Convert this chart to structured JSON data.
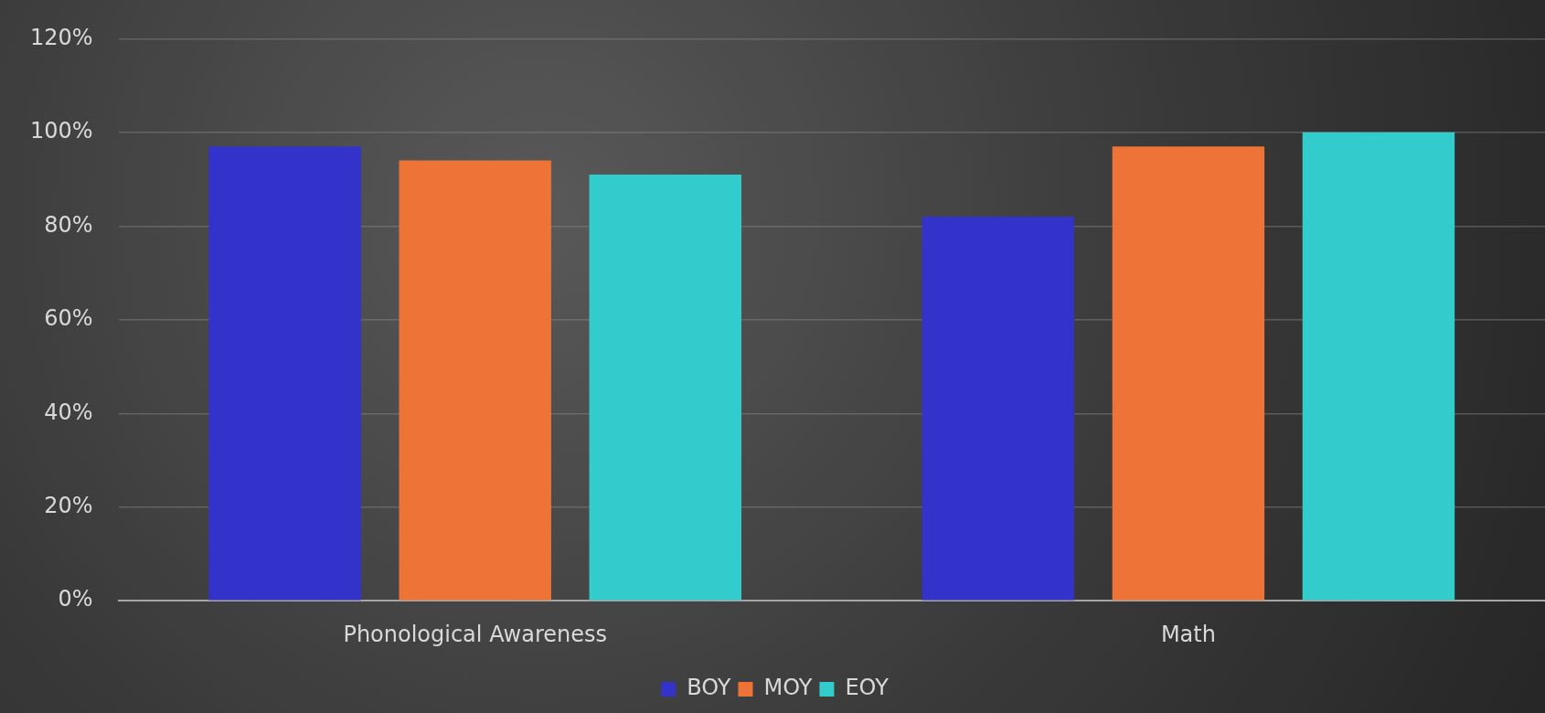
{
  "chart_data": {
    "type": "bar",
    "categories": [
      "Phonological Awareness",
      "Math"
    ],
    "series": [
      {
        "name": "BOY",
        "color": "#3333cc",
        "values": [
          97,
          82
        ]
      },
      {
        "name": "MOY",
        "color": "#ed7436",
        "values": [
          94,
          97
        ]
      },
      {
        "name": "EOY",
        "color": "#33cccc",
        "values": [
          91,
          100
        ]
      }
    ],
    "ylim": [
      0,
      120
    ],
    "yticks": [
      {
        "value": 0,
        "label": "0%"
      },
      {
        "value": 20,
        "label": "20%"
      },
      {
        "value": 40,
        "label": "40%"
      },
      {
        "value": 60,
        "label": "60%"
      },
      {
        "value": 80,
        "label": "80%"
      },
      {
        "value": 100,
        "label": "100%"
      },
      {
        "value": 120,
        "label": "120%"
      }
    ],
    "grid": "y",
    "legend": "bottom"
  }
}
